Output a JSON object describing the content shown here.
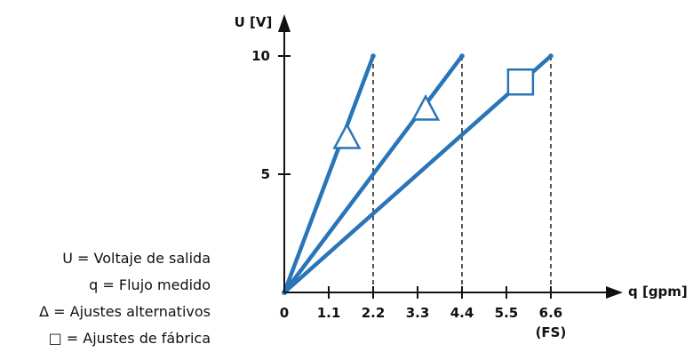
{
  "chart_data": {
    "type": "line",
    "xlabel": "q [gpm]",
    "ylabel": "U [V]",
    "xlim": [
      0,
      7.4
    ],
    "ylim": [
      0,
      11
    ],
    "x_ticks": [
      {
        "value": 0,
        "label": "0"
      },
      {
        "value": 1.1,
        "label": "1.1"
      },
      {
        "value": 2.2,
        "label": "2.2"
      },
      {
        "value": 3.3,
        "label": "3.3"
      },
      {
        "value": 4.4,
        "label": "4.4"
      },
      {
        "value": 5.5,
        "label": "5.5"
      },
      {
        "value": 6.6,
        "label": "6.6"
      }
    ],
    "x_tick_sublabel": {
      "value": 6.6,
      "label": "(FS)"
    },
    "y_ticks": [
      {
        "value": 5,
        "label": "5"
      },
      {
        "value": 10,
        "label": "10"
      }
    ],
    "series": [
      {
        "x": [
          0,
          2.2
        ],
        "y": [
          0,
          10
        ],
        "marker": "triangle",
        "marker_at": {
          "x": 1.55,
          "y": 6.6
        }
      },
      {
        "x": [
          0,
          4.4
        ],
        "y": [
          0,
          10
        ],
        "marker": "triangle",
        "marker_at": {
          "x": 3.5,
          "y": 7.8
        }
      },
      {
        "x": [
          0,
          6.6
        ],
        "y": [
          0,
          10
        ],
        "marker": "square",
        "marker_at": {
          "x": 5.85,
          "y": 8.9
        }
      }
    ],
    "reference_lines": [
      2.2,
      4.4,
      6.6
    ],
    "colors": {
      "line": "#2a74b8",
      "axis": "#111111"
    }
  },
  "legend": [
    "U = Voltaje de salida",
    "q = Flujo medido",
    "Δ = Ajustes alternativos",
    "□ = Ajustes de fábrica"
  ]
}
